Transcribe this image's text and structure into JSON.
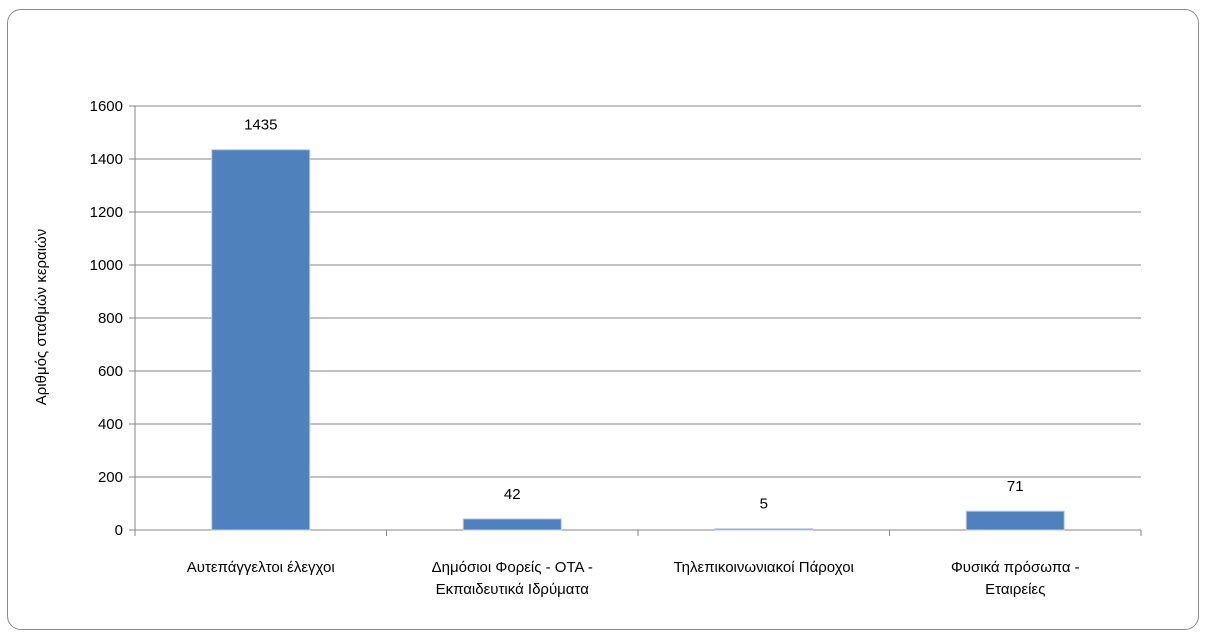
{
  "chart_data": {
    "type": "bar",
    "categories": [
      [
        "Αυτεπάγγελτοι έλεγχοι"
      ],
      [
        "Δημόσιοι Φορείς - ΟΤΑ -",
        "Εκπαιδευτικά Ιδρύματα"
      ],
      [
        "Τηλεπικοινωνιακοί Πάροχοι"
      ],
      [
        "Φυσικά πρόσωπα -",
        "Εταιρείες"
      ]
    ],
    "values": [
      1435,
      42,
      5,
      71
    ],
    "data_labels": [
      "1435",
      "42",
      "5",
      "71"
    ],
    "title": "",
    "xlabel": "",
    "ylabel": "Αριθμός σταθμών κεραιών",
    "ylim": [
      0,
      1600
    ],
    "yticks": [
      0,
      200,
      400,
      600,
      800,
      1000,
      1200,
      1400,
      1600
    ],
    "grid": true,
    "legend": "none",
    "colors": {
      "bar": "#4f81bd",
      "bar_edge": "#b9cde5",
      "grid": "#868686",
      "axis": "#868686",
      "frame": "#8c8c8c"
    }
  }
}
